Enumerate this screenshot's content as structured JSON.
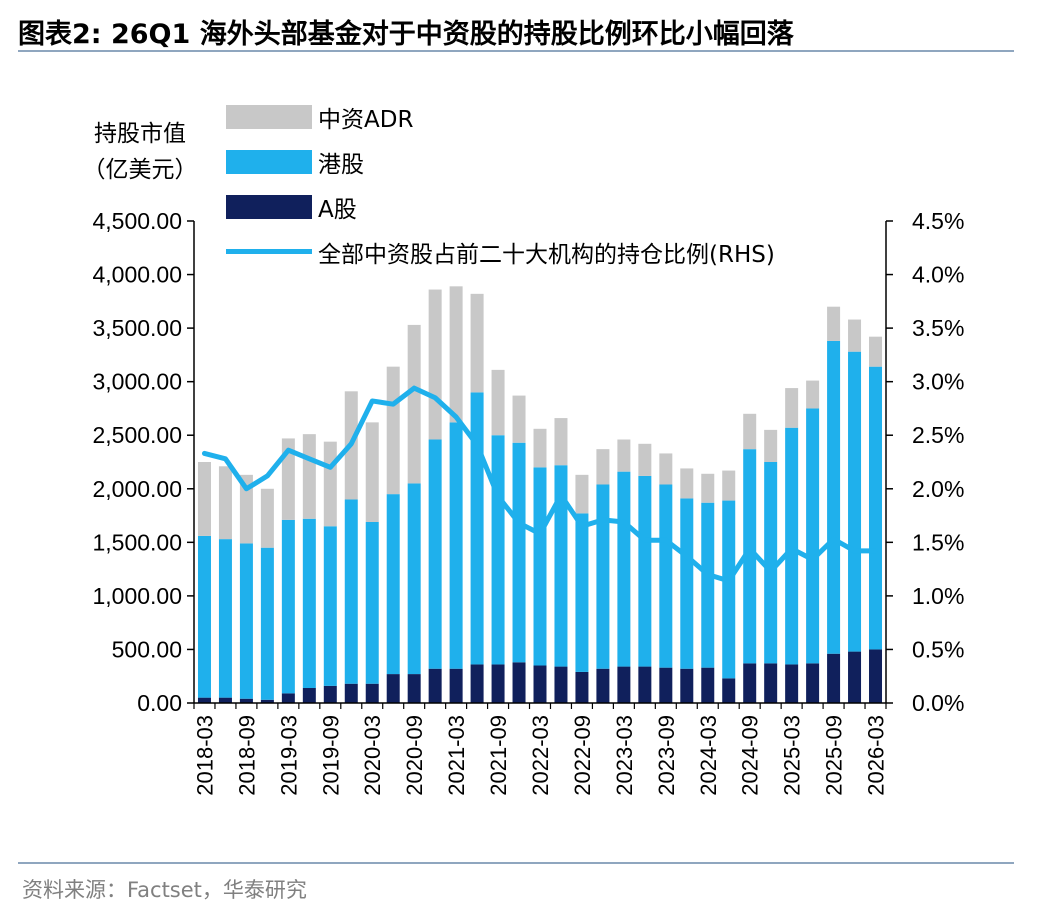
{
  "header": {
    "title": "图表2:   26Q1 海外头部基金对于中资股的持股比例环比小幅回落"
  },
  "footer": {
    "source": "资料来源：Factset，华泰研究"
  },
  "colors": {
    "adr": "#c8c8c8",
    "hk": "#1fb0ec",
    "ashare": "#10205c",
    "ratio_line": "#1fb0ec",
    "rule": "#8fa6bf"
  },
  "chart_data": {
    "type": "bar",
    "stacked": true,
    "ylabel_line1": "持股市值",
    "ylabel_line2": "（亿美元）",
    "ylim": [
      0,
      4500
    ],
    "y2lim": [
      0,
      4.5
    ],
    "yticks": [
      "0.00",
      "500.00",
      "1,000.00",
      "1,500.00",
      "2,000.00",
      "2,500.00",
      "3,000.00",
      "3,500.00",
      "4,000.00",
      "4,500.00"
    ],
    "y2ticks": [
      "0.0%",
      "0.5%",
      "1.0%",
      "1.5%",
      "2.0%",
      "2.5%",
      "3.0%",
      "3.5%",
      "4.0%",
      "4.5%"
    ],
    "categories": [
      "2018-03",
      "2018-06",
      "2018-09",
      "2018-12",
      "2019-03",
      "2019-06",
      "2019-09",
      "2019-12",
      "2020-03",
      "2020-06",
      "2020-09",
      "2020-12",
      "2021-03",
      "2021-06",
      "2021-09",
      "2021-12",
      "2022-03",
      "2022-06",
      "2022-09",
      "2022-12",
      "2023-03",
      "2023-06",
      "2023-09",
      "2023-12",
      "2024-03",
      "2024-06",
      "2024-09",
      "2024-12",
      "2025-03",
      "2025-06",
      "2025-09",
      "2025-12",
      "2026-03"
    ],
    "xtick_labels": [
      "2018-03",
      "2018-09",
      "2019-03",
      "2019-09",
      "2020-03",
      "2020-09",
      "2021-03",
      "2021-09",
      "2022-03",
      "2022-09",
      "2023-03",
      "2023-09",
      "2024-03",
      "2024-09",
      "2025-03",
      "2025-09",
      "2026-03"
    ],
    "legend_placement": "top-left",
    "series": [
      {
        "name": "中资ADR",
        "kind": "bar",
        "values": [
          690,
          680,
          640,
          550,
          760,
          790,
          790,
          1010,
          930,
          1190,
          1480,
          1400,
          1270,
          920,
          610,
          440,
          360,
          440,
          360,
          330,
          300,
          300,
          290,
          280,
          270,
          280,
          330,
          300,
          370,
          260,
          320,
          300,
          280
        ]
      },
      {
        "name": "港股",
        "kind": "bar",
        "values": [
          1510,
          1480,
          1450,
          1420,
          1620,
          1580,
          1490,
          1720,
          1510,
          1680,
          1780,
          2140,
          2300,
          2540,
          2140,
          2050,
          1850,
          1880,
          1480,
          1720,
          1820,
          1780,
          1710,
          1590,
          1540,
          1660,
          2000,
          1880,
          2210,
          2380,
          2920,
          2800,
          2640
        ]
      },
      {
        "name": "A股",
        "kind": "bar",
        "values": [
          50,
          50,
          40,
          30,
          90,
          140,
          160,
          180,
          180,
          270,
          270,
          320,
          320,
          360,
          360,
          380,
          350,
          340,
          290,
          320,
          340,
          340,
          330,
          320,
          330,
          230,
          370,
          370,
          360,
          370,
          460,
          480,
          500
        ]
      },
      {
        "name": "全部中资股占前二十大机构的持仓比例(RHS)",
        "kind": "line",
        "axis": "right",
        "values": [
          2.33,
          2.28,
          2.0,
          2.12,
          2.36,
          2.28,
          2.2,
          2.42,
          2.82,
          2.79,
          2.94,
          2.85,
          2.67,
          2.41,
          1.93,
          1.68,
          1.58,
          1.94,
          1.65,
          1.71,
          1.69,
          1.52,
          1.52,
          1.37,
          1.2,
          1.14,
          1.44,
          1.23,
          1.44,
          1.34,
          1.53,
          1.42,
          1.42
        ]
      }
    ]
  }
}
